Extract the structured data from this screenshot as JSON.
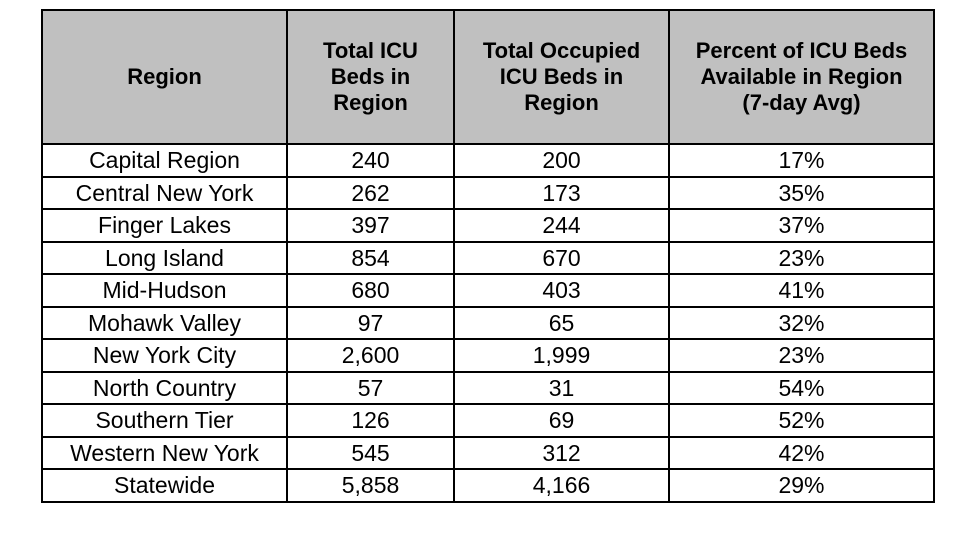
{
  "table": {
    "headers": [
      "Region",
      "Total ICU\nBeds in\nRegion",
      "Total Occupied\nICU Beds in\nRegion",
      "Percent of ICU Beds\nAvailable in Region\n(7-day Avg)"
    ],
    "rows": [
      [
        "Capital Region",
        "240",
        "200",
        "17%"
      ],
      [
        "Central New York",
        "262",
        "173",
        "35%"
      ],
      [
        "Finger Lakes",
        "397",
        "244",
        "37%"
      ],
      [
        "Long Island",
        "854",
        "670",
        "23%"
      ],
      [
        "Mid-Hudson",
        "680",
        "403",
        "41%"
      ],
      [
        "Mohawk Valley",
        "97",
        "65",
        "32%"
      ],
      [
        "New York City",
        "2,600",
        "1,999",
        "23%"
      ],
      [
        "North Country",
        "57",
        "31",
        "54%"
      ],
      [
        "Southern Tier",
        "126",
        "69",
        "52%"
      ],
      [
        "Western New York",
        "545",
        "312",
        "42%"
      ],
      [
        "Statewide",
        "5,858",
        "4,166",
        "29%"
      ]
    ]
  },
  "colors": {
    "header_background": "#c0c0c0",
    "border": "#000000",
    "text": "#000000",
    "page_background": "#ffffff"
  }
}
